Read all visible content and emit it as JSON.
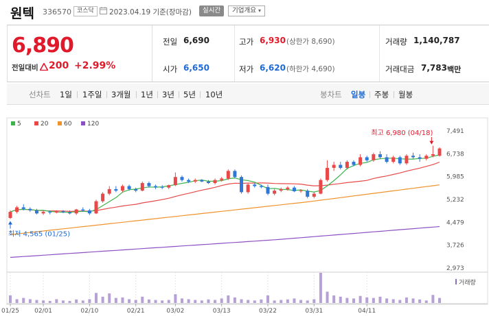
{
  "header": {
    "stock_name": "원텍",
    "stock_code": "336570",
    "market": "코스닥",
    "base_date": "2023.04.19 기준(장마감)",
    "realtime_label": "실시간",
    "company_info_label": "기업개요",
    "company_info_arrow": "▾",
    "calendar_icon": "calendar-icon"
  },
  "summary": {
    "price": "6,890",
    "change_label": "전일대비",
    "change_value": "200",
    "change_rate": "+2.99%",
    "prev_close_label": "전일",
    "prev_close": "6,690",
    "high_label": "고가",
    "high": "6,930",
    "upper_limit": "(상한가 8,690)",
    "volume_label": "거래량",
    "volume": "1,140,787",
    "open_label": "시가",
    "open": "6,650",
    "low_label": "저가",
    "low": "6,620",
    "lower_limit": "(하한가 4,690)",
    "amount_label": "거래대금",
    "amount": "7,783",
    "amount_unit": "백만",
    "colors": {
      "up": "#e0192b",
      "down": "#1e6ad4"
    }
  },
  "tabs": {
    "chart_label": "선차트",
    "periods": [
      "1일",
      "1주일",
      "3개월",
      "1년",
      "3년",
      "5년",
      "10년"
    ],
    "candle_label": "봉차트",
    "candles": [
      "일봉",
      "주봉",
      "월봉"
    ],
    "active_candle": 0
  },
  "chart_data": {
    "type": "candlestick",
    "legend": [
      {
        "name": "5",
        "color": "#3cb44b"
      },
      {
        "name": "20",
        "color": "#e84848"
      },
      {
        "name": "60",
        "color": "#f0922a"
      },
      {
        "name": "120",
        "color": "#8c4fc4"
      }
    ],
    "y_ticks": [
      "7,491",
      "6,738",
      "5,985",
      "5,232",
      "4,479",
      "3,726",
      "2,973"
    ],
    "y_tick_values": [
      7491,
      6738,
      5985,
      5232,
      4479,
      3726,
      2973
    ],
    "x_labels": [
      "01/25",
      "02/01",
      "02/10",
      "02/21",
      "03/02",
      "03/13",
      "03/22",
      "03/31",
      "04/11"
    ],
    "x_label_index": [
      0,
      5,
      12,
      19,
      25,
      32,
      39,
      46,
      54
    ],
    "high_annotation": "최고 6,980 (04/18)",
    "low_annotation": "최저 4,565 (01/25)",
    "volume_label": "거래량",
    "candles": [
      [
        4600,
        4850,
        4565,
        4800
      ],
      [
        4800,
        5000,
        4750,
        4950
      ],
      [
        4950,
        5050,
        4850,
        4900
      ],
      [
        4900,
        4950,
        4800,
        4850
      ],
      [
        4850,
        4900,
        4720,
        4750
      ],
      [
        4750,
        4850,
        4700,
        4800
      ],
      [
        4800,
        4850,
        4720,
        4780
      ],
      [
        4780,
        4850,
        4750,
        4820
      ],
      [
        4820,
        4860,
        4760,
        4790
      ],
      [
        4790,
        4850,
        4720,
        4750
      ],
      [
        4750,
        4900,
        4700,
        4880
      ],
      [
        4880,
        4950,
        4800,
        4850
      ],
      [
        4850,
        4900,
        4700,
        4750
      ],
      [
        4750,
        5200,
        4730,
        5150
      ],
      [
        5150,
        5450,
        5100,
        5400
      ],
      [
        5400,
        5650,
        5350,
        5550
      ],
      [
        5550,
        5650,
        5450,
        5500
      ],
      [
        5500,
        5700,
        5450,
        5650
      ],
      [
        5650,
        5700,
        5500,
        5550
      ],
      [
        5550,
        5600,
        5450,
        5500
      ],
      [
        5500,
        5800,
        5480,
        5750
      ],
      [
        5750,
        5800,
        5600,
        5650
      ],
      [
        5650,
        5700,
        5550,
        5620
      ],
      [
        5620,
        5680,
        5550,
        5600
      ],
      [
        5600,
        5700,
        5550,
        5680
      ],
      [
        5680,
        6100,
        5650,
        5950
      ],
      [
        5950,
        6000,
        5800,
        5850
      ],
      [
        5850,
        5900,
        5750,
        5800
      ],
      [
        5800,
        5900,
        5750,
        5850
      ],
      [
        5850,
        5880,
        5780,
        5800
      ],
      [
        5800,
        5850,
        5720,
        5750
      ],
      [
        5750,
        5900,
        5700,
        5850
      ],
      [
        5850,
        5950,
        5800,
        5900
      ],
      [
        5900,
        6200,
        5850,
        6150
      ],
      [
        6150,
        6200,
        5900,
        5950
      ],
      [
        5950,
        6000,
        5400,
        5450
      ],
      [
        5450,
        5750,
        5400,
        5700
      ],
      [
        5700,
        5750,
        5600,
        5650
      ],
      [
        5650,
        5700,
        5580,
        5620
      ],
      [
        5620,
        5700,
        5350,
        5400
      ],
      [
        5400,
        5550,
        5350,
        5500
      ],
      [
        5500,
        5600,
        5450,
        5550
      ],
      [
        5550,
        5650,
        5500,
        5600
      ],
      [
        5600,
        5650,
        5450,
        5480
      ],
      [
        5480,
        5550,
        5430,
        5500
      ],
      [
        5500,
        5550,
        5250,
        5300
      ],
      [
        5300,
        5450,
        5250,
        5400
      ],
      [
        5400,
        5900,
        5380,
        5850
      ],
      [
        5850,
        6500,
        5800,
        6250
      ],
      [
        6250,
        6450,
        6150,
        6350
      ],
      [
        6350,
        6450,
        6200,
        6250
      ],
      [
        6250,
        6500,
        6200,
        6450
      ],
      [
        6450,
        6500,
        6300,
        6350
      ],
      [
        6350,
        6700,
        6300,
        6600
      ],
      [
        6600,
        6650,
        6450,
        6500
      ],
      [
        6500,
        6750,
        6450,
        6700
      ],
      [
        6700,
        6800,
        6550,
        6600
      ],
      [
        6600,
        6700,
        6400,
        6450
      ],
      [
        6450,
        6650,
        6400,
        6600
      ],
      [
        6600,
        6650,
        6350,
        6400
      ],
      [
        6400,
        6700,
        6350,
        6650
      ],
      [
        6650,
        6750,
        6550,
        6600
      ],
      [
        6600,
        6700,
        6450,
        6550
      ],
      [
        6550,
        6700,
        6500,
        6650
      ],
      [
        6650,
        6980,
        6600,
        6700
      ],
      [
        6650,
        6930,
        6620,
        6890
      ]
    ],
    "volumes": [
      30,
      15,
      20,
      15,
      12,
      10,
      8,
      15,
      10,
      8,
      14,
      10,
      15,
      40,
      25,
      38,
      20,
      22,
      15,
      12,
      25,
      14,
      12,
      10,
      12,
      35,
      18,
      15,
      12,
      10,
      14,
      12,
      18,
      30,
      22,
      15,
      12,
      10,
      14,
      30,
      10,
      12,
      14,
      18,
      12,
      10,
      15,
      120,
      45,
      30,
      25,
      20,
      18,
      28,
      22,
      20,
      25,
      18,
      15,
      12,
      22,
      18,
      14,
      10,
      32,
      20
    ],
    "volume_max": 120
  }
}
